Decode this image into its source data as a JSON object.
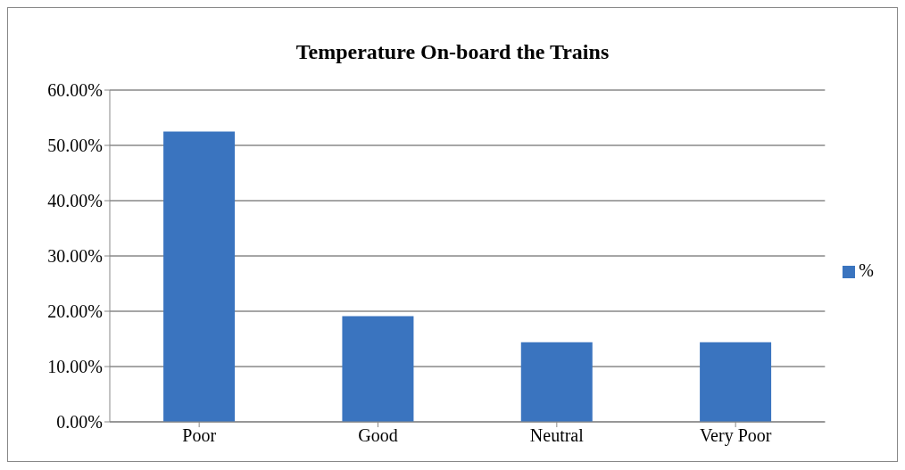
{
  "chart_data": {
    "type": "bar",
    "title": "Temperature On-board the Trains",
    "categories": [
      "Poor",
      "Good",
      "Neutral",
      "Very Poor"
    ],
    "series": [
      {
        "name": "%",
        "color": "#3a74bf",
        "values": [
          52.5,
          19.1,
          14.4,
          14.4
        ]
      }
    ],
    "ylim": [
      0,
      60
    ],
    "yticks": [
      {
        "value": 0,
        "label": "0.00%"
      },
      {
        "value": 10,
        "label": "10.00%"
      },
      {
        "value": 20,
        "label": "20.00%"
      },
      {
        "value": 30,
        "label": "30.00%"
      },
      {
        "value": 40,
        "label": "40.00%"
      },
      {
        "value": 50,
        "label": "50.00%"
      },
      {
        "value": 60,
        "label": "60.00%"
      }
    ],
    "grid": "y",
    "legend": "right"
  }
}
